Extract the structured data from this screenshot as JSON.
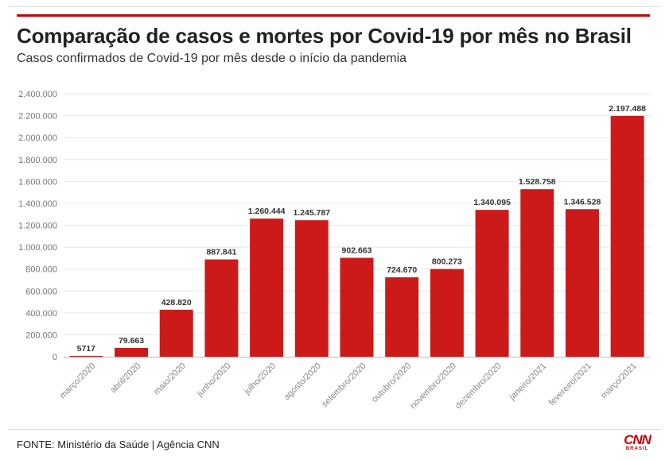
{
  "header": {
    "title": "Comparação de casos e mortes por Covid-19 por mês no Brasil",
    "subtitle": "Casos confirmados de Covid-19 por mês desde o início da pandemia"
  },
  "footer": {
    "source": "FONTE: Ministério da Saúde | Agência CNN",
    "logo_text": "CNN",
    "logo_sub": "BRASIL"
  },
  "colors": {
    "bar": "#cc1a1a",
    "accent": "#cc0000",
    "grid": "#e6e6e6"
  },
  "chart_data": {
    "type": "bar",
    "title": "Comparação de casos e mortes por Covid-19 por mês no Brasil",
    "subtitle": "Casos confirmados de Covid-19 por mês desde o início da pandemia",
    "xlabel": "",
    "ylabel": "",
    "ylim": [
      0,
      2400000
    ],
    "yticks": [
      0,
      200000,
      400000,
      600000,
      800000,
      1000000,
      1200000,
      1400000,
      1600000,
      1800000,
      2000000,
      2200000,
      2400000
    ],
    "ytick_labels": [
      "0",
      "200.000",
      "400.000",
      "600.000",
      "800.000",
      "1.000.000",
      "1.200.000",
      "1.400.000",
      "1.600.000",
      "1.800.000",
      "2.000.000",
      "2.200.000",
      "2.400.000"
    ],
    "grid": true,
    "categories": [
      "março/2020",
      "abril/2020",
      "maio/2020",
      "junho/2020",
      "julho/2020",
      "agosto/2020",
      "setembro/2020",
      "outubro/2020",
      "novembro/2020",
      "dezembro/2020",
      "janeiro/2021",
      "fevereiro/2021",
      "março/2021"
    ],
    "values": [
      5717,
      79663,
      428820,
      887841,
      1260444,
      1245787,
      902663,
      724670,
      800273,
      1340095,
      1528758,
      1346528,
      2197488
    ],
    "data_labels": [
      "5717",
      "79.663",
      "428.820",
      "887.841",
      "1.260.444",
      "1.245.787",
      "902.663",
      "724.670",
      "800.273",
      "1.340.095",
      "1.528.758",
      "1.346.528",
      "2.197.488"
    ]
  }
}
